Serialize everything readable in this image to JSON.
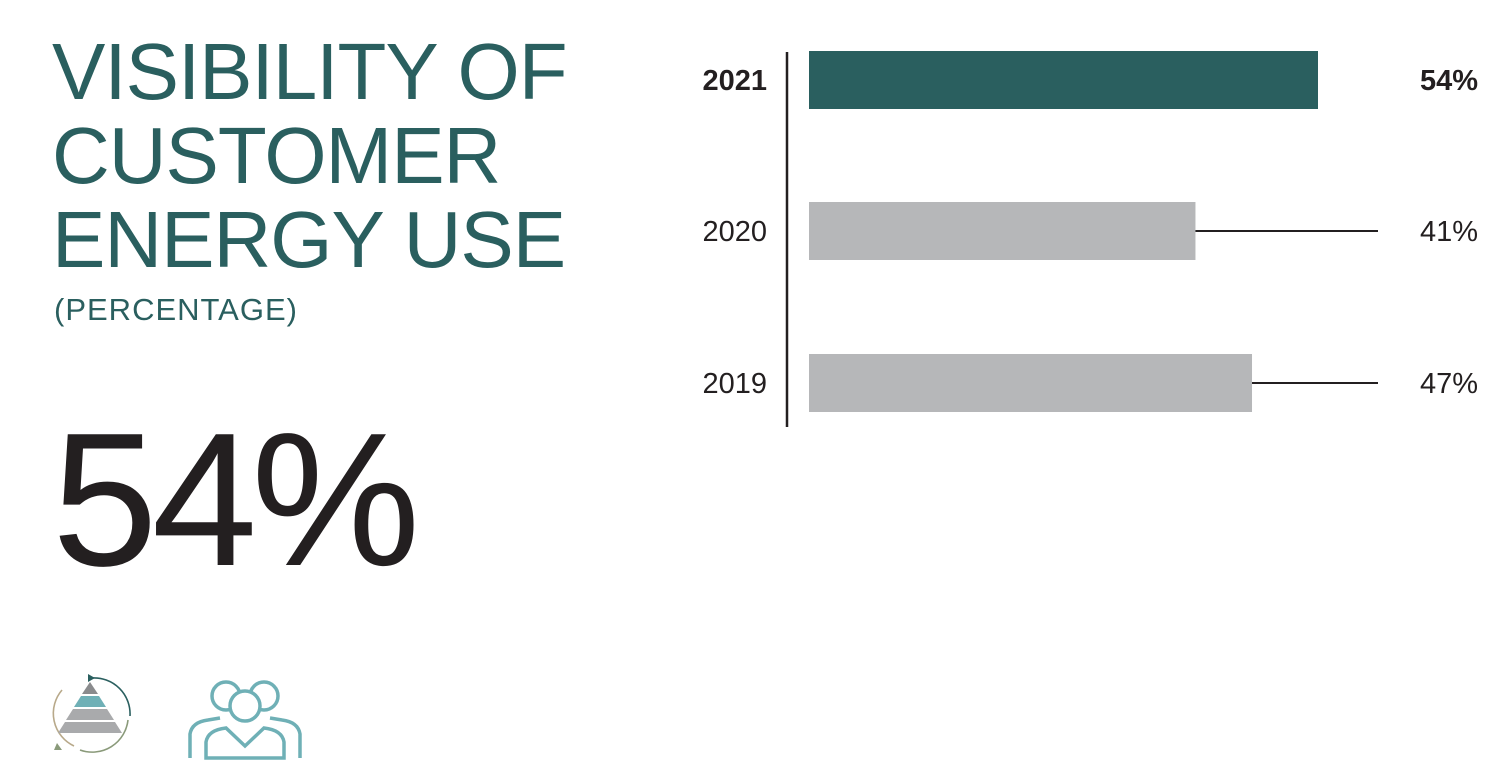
{
  "header": {
    "title": "VISIBILITY OF\nCUSTOMER\nENERGY USE",
    "subtitle": "(PERCENTAGE)"
  },
  "headline_stat": "54%",
  "colors": {
    "title": "#2a5f5f",
    "highlight_bar": "#2a5f5f",
    "bar": "#b6b7b9",
    "text": "#231f20",
    "icon_teal": "#6fb0b6",
    "icon_gray": "#a9aaac"
  },
  "icons": [
    "pyramid-cycle-icon",
    "people-group-icon"
  ],
  "chart_data": {
    "type": "bar",
    "orientation": "horizontal",
    "categories": [
      "2021",
      "2020",
      "2019"
    ],
    "values": [
      54,
      41,
      47
    ],
    "value_labels": [
      "54%",
      "41%",
      "47%"
    ],
    "highlight": "2021",
    "title": "VISIBILITY OF CUSTOMER ENERGY USE",
    "subtitle": "(PERCENTAGE)",
    "xlim": [
      0,
      60
    ],
    "grid": false
  }
}
